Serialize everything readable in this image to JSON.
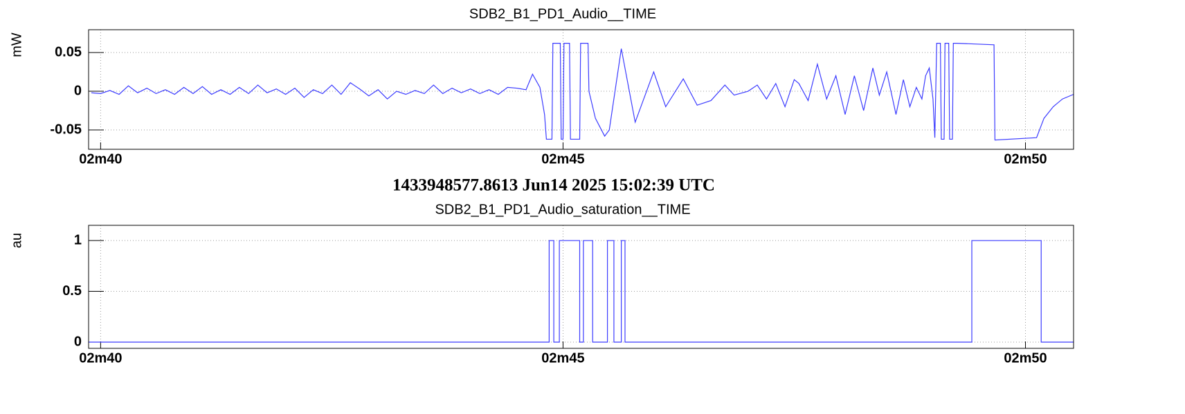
{
  "chart_data": [
    {
      "type": "line",
      "title": "SDB2_B1_PD1_Audio__TIME",
      "ylabel": "mW",
      "color": "#3b3bff",
      "grid": true,
      "xlim": [
        159.87,
        170.52
      ],
      "xticks": [
        {
          "value": 160,
          "label": "02m40"
        },
        {
          "value": 165,
          "label": "02m45"
        },
        {
          "value": 170,
          "label": "02m50"
        }
      ],
      "ylim": [
        -0.075,
        0.0795
      ],
      "yticks": [
        -0.05,
        0,
        0.05
      ],
      "x": [
        159.9,
        160.0,
        160.1,
        160.2,
        160.3,
        160.4,
        160.5,
        160.6,
        160.7,
        160.8,
        160.9,
        161.0,
        161.1,
        161.2,
        161.3,
        161.4,
        161.5,
        161.6,
        161.7,
        161.8,
        161.9,
        162.0,
        162.1,
        162.2,
        162.3,
        162.4,
        162.5,
        162.6,
        162.7,
        162.8,
        162.9,
        163.0,
        163.1,
        163.2,
        163.3,
        163.4,
        163.5,
        163.6,
        163.7,
        163.8,
        163.9,
        164.0,
        164.1,
        164.2,
        164.3,
        164.4,
        164.5,
        164.6,
        164.67,
        164.75,
        164.8,
        164.82,
        164.88,
        164.89,
        164.97,
        164.98,
        165.0,
        165.01,
        165.07,
        165.08,
        165.18,
        165.19,
        165.27,
        165.28,
        165.35,
        165.45,
        165.5,
        165.63,
        165.78,
        165.98,
        166.11,
        166.3,
        166.45,
        166.6,
        166.75,
        166.85,
        167.0,
        167.1,
        167.2,
        167.3,
        167.4,
        167.5,
        167.55,
        167.65,
        167.75,
        167.85,
        167.95,
        168.05,
        168.15,
        168.25,
        168.35,
        168.42,
        168.5,
        168.6,
        168.68,
        168.75,
        168.82,
        168.88,
        168.92,
        168.96,
        169.0,
        169.02,
        169.04,
        169.08,
        169.09,
        169.12,
        169.13,
        169.17,
        169.18,
        169.21,
        169.22,
        169.26,
        169.66,
        169.67,
        170.12,
        170.2,
        170.3,
        170.4,
        170.52
      ],
      "values": [
        -0.002,
        -0.003,
        0.001,
        -0.004,
        0.007,
        -0.002,
        0.004,
        -0.003,
        0.002,
        -0.004,
        0.005,
        -0.003,
        0.006,
        -0.004,
        0.002,
        -0.004,
        0.005,
        -0.003,
        0.008,
        -0.002,
        0.003,
        -0.004,
        0.004,
        -0.008,
        0.002,
        -0.003,
        0.008,
        -0.004,
        0.011,
        0.003,
        -0.006,
        0.002,
        -0.01,
        0.0,
        -0.004,
        0.001,
        -0.003,
        0.008,
        -0.003,
        0.004,
        -0.002,
        0.003,
        -0.003,
        0.002,
        -0.004,
        0.005,
        0.004,
        0.002,
        0.022,
        0.005,
        -0.03,
        -0.062,
        -0.062,
        0.062,
        0.062,
        -0.062,
        -0.062,
        0.062,
        0.062,
        -0.062,
        -0.062,
        0.062,
        0.062,
        0.0,
        -0.035,
        -0.058,
        -0.05,
        0.055,
        -0.04,
        0.025,
        -0.02,
        0.016,
        -0.018,
        -0.012,
        0.008,
        -0.005,
        0.0,
        0.008,
        -0.01,
        0.01,
        -0.02,
        0.015,
        0.01,
        -0.012,
        0.035,
        -0.01,
        0.02,
        -0.03,
        0.02,
        -0.025,
        0.03,
        -0.005,
        0.025,
        -0.03,
        0.015,
        -0.02,
        0.005,
        -0.01,
        0.02,
        0.03,
        -0.01,
        -0.06,
        0.062,
        0.062,
        -0.062,
        -0.062,
        0.062,
        0.062,
        -0.062,
        -0.062,
        0.062,
        0.062,
        0.06,
        -0.063,
        -0.06,
        -0.035,
        -0.02,
        -0.01,
        -0.004
      ]
    },
    {
      "type": "line",
      "title": "SDB2_B1_PD1_Audio_saturation__TIME",
      "ylabel": "au",
      "color": "#3b3bff",
      "grid": true,
      "xlim": [
        159.87,
        170.52
      ],
      "xticks": [
        {
          "value": 160,
          "label": "02m40"
        },
        {
          "value": 165,
          "label": "02m45"
        },
        {
          "value": 170,
          "label": "02m50"
        }
      ],
      "ylim": [
        -0.061,
        1.15
      ],
      "yticks": [
        0,
        0.5,
        1
      ],
      "x": [
        159.87,
        164.85,
        164.85,
        164.9,
        164.9,
        164.96,
        164.96,
        165.18,
        165.18,
        165.22,
        165.22,
        165.32,
        165.32,
        165.48,
        165.48,
        165.55,
        165.55,
        165.63,
        165.63,
        165.67,
        165.67,
        169.42,
        169.42,
        170.17,
        170.17,
        170.52
      ],
      "values": [
        0,
        0,
        1,
        1,
        0,
        0,
        1,
        1,
        0,
        0,
        1,
        1,
        0,
        0,
        1,
        1,
        0,
        0,
        1,
        1,
        0,
        0,
        1,
        1,
        0,
        0
      ]
    }
  ],
  "timestamp": "1433948577.8613 Jun14 2025 15:02:39 UTC"
}
